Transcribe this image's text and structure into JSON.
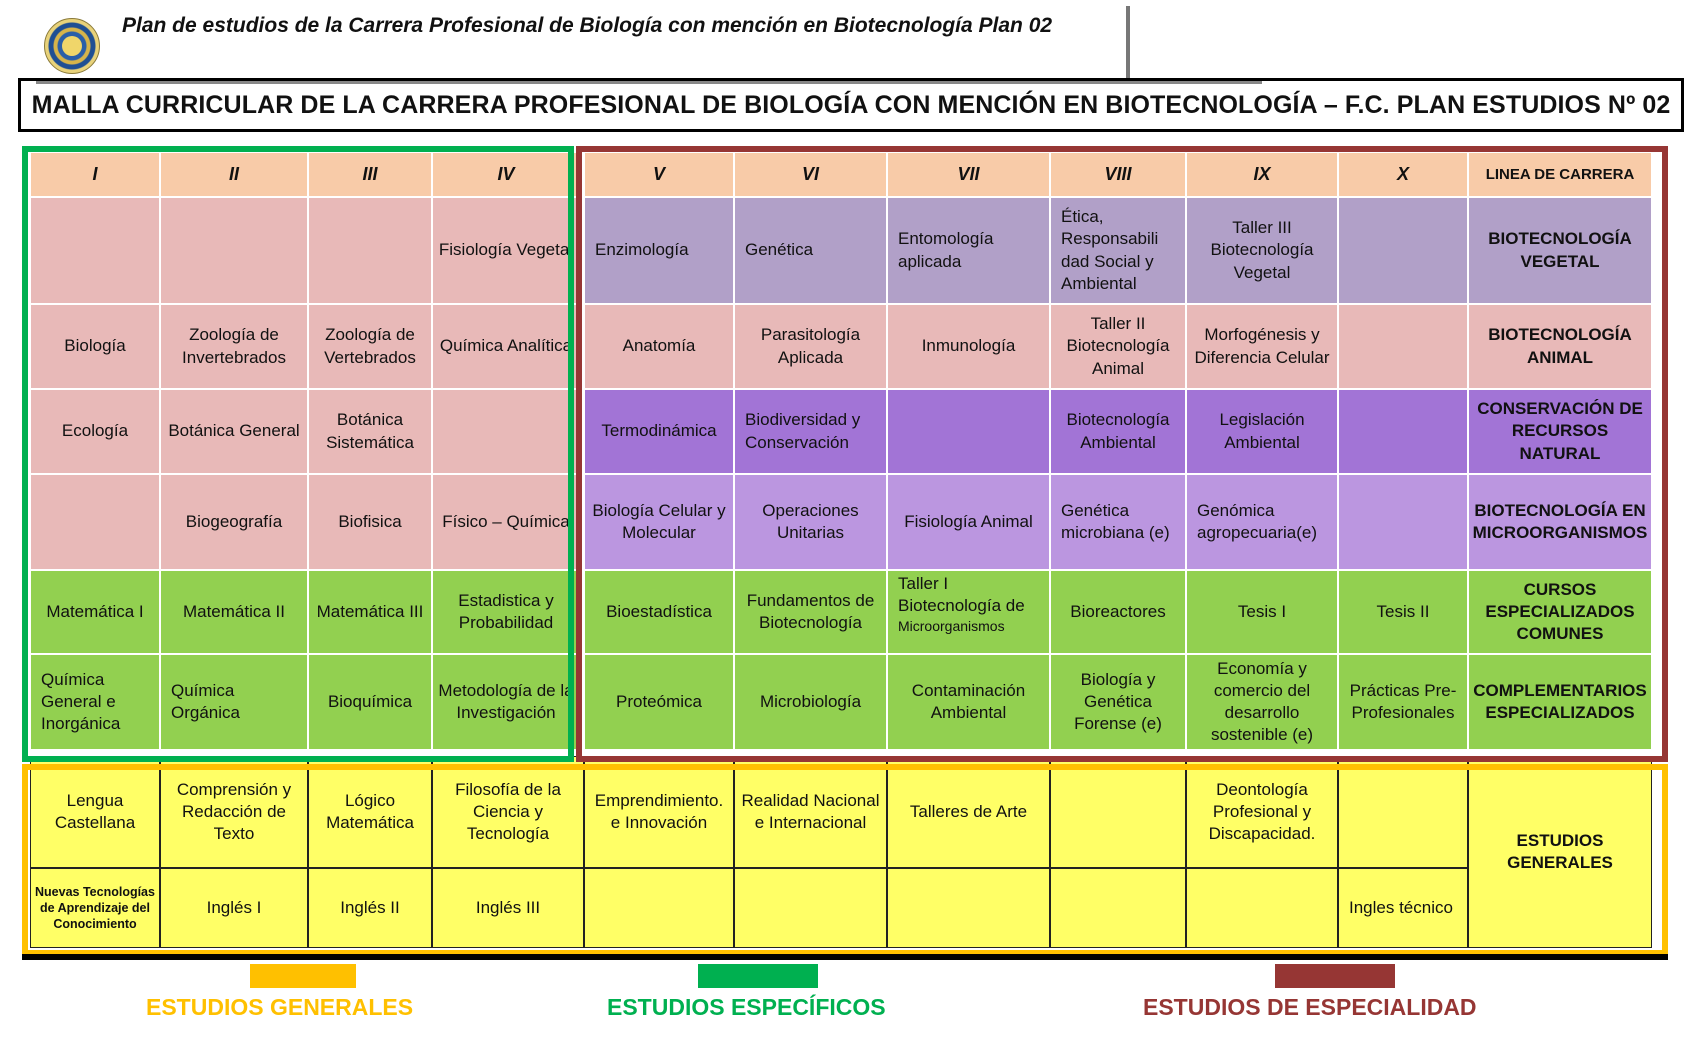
{
  "header": {
    "title": "Plan de estudios de la Carrera Profesional de  Biología con mención en Biotecnología Plan 02",
    "logo_icon": "university-seal-icon"
  },
  "malla_title": "MALLA CURRICULAR DE LA CARRERA PROFESIONAL DE BIOLOGÍA CON MENCIÓN EN BIOTECNOLOGÍA – F.C. PLAN ESTUDIOS Nº 02",
  "semesters": [
    "I",
    "II",
    "III",
    "IV",
    "V",
    "VI",
    "VII",
    "VIII",
    "IX",
    "X"
  ],
  "line_header": "LINEA DE CARRERA",
  "rows": [
    {
      "line": "BIOTECNOLOGÍA VEGETAL",
      "courses": [
        "",
        "",
        "",
        "Fisiología Vegetal",
        "Enzimología",
        "Genética",
        "Entomología aplicada",
        "Ética, Responsabili dad Social y Ambiental",
        "Taller III Biotecnología Vegetal",
        ""
      ]
    },
    {
      "line": "BIOTECNOLOGÍA ANIMAL",
      "courses": [
        "Biología",
        "Zoología de Invertebrados",
        "Zoología de Vertebrados",
        "Química Analítica",
        "Anatomía",
        "Parasitología Aplicada",
        "Inmunología",
        "Taller II Biotecnología Animal",
        "Morfogénesis y Diferencia Celular",
        ""
      ]
    },
    {
      "line": "CONSERVACIÓN DE RECURSOS NATURAL",
      "courses": [
        "Ecología",
        "Botánica General",
        "Botánica Sistemática",
        "",
        "Termodinámica",
        "Biodiversidad y Conservación",
        "",
        "Biotecnología Ambiental",
        "Legislación Ambiental",
        ""
      ]
    },
    {
      "line": "BIOTECNOLOGÍA EN MICROORGANISMOS",
      "courses": [
        "",
        "Biogeografía",
        "Biofisica",
        "Físico – Química",
        "Biología Celular y Molecular",
        "Operaciones Unitarias",
        "Fisiología Animal",
        "Genética microbiana (e)",
        "Genómica agropecuaria(e)",
        ""
      ]
    },
    {
      "line": "CURSOS ESPECIALIZADOS COMUNES",
      "courses": [
        "Matemática I",
        "Matemática II",
        "Matemática III",
        "Estadistica y Probabilidad",
        "Bioestadística",
        "Fundamentos de Biotecnología",
        "Taller I Biotecnología de",
        "Bioreactores",
        "Tesis I",
        "Tesis II"
      ],
      "extra_small": "Microorganismos"
    },
    {
      "line": "COMPLEMENTARIOS ESPECIALIZADOS",
      "courses": [
        "Química General e Inorgánica",
        "Química Orgánica",
        "Bioquímica",
        "Metodología de la Investigación",
        "Proteómica",
        "Microbiología",
        "Contaminación Ambiental",
        "Biología y Genética Forense (e)",
        "Economía y comercio del desarrollo sostenible (e)",
        "Prácticas Pre-Profesionales"
      ]
    }
  ],
  "general_studies": {
    "line": "ESTUDIOS GENERALES",
    "row1": [
      "Lengua Castellana",
      "Comprensión  y Redacción de Texto",
      "Lógico Matemática",
      "Filosofía de la Ciencia y Tecnología",
      "Emprendimiento. e Innovación",
      "Realidad Nacional e Internacional",
      "Talleres de Arte",
      "",
      "Deontología Profesional y Discapacidad.",
      ""
    ],
    "row2": [
      "Nuevas Tecnologías de Aprendizaje del Conocimiento",
      "Inglés I",
      "Inglés II",
      "Inglés III",
      "",
      "",
      "",
      "",
      "",
      "Ingles técnico"
    ]
  },
  "legend": {
    "generales": {
      "label": "ESTUDIOS GENERALES",
      "color": "#ffc000"
    },
    "especificos": {
      "label": "ESTUDIOS ESPECÍFICOS",
      "color": "#00b050"
    },
    "especialidad": {
      "label": "ESTUDIOS DE ESPECIALIDAD",
      "color": "#963634"
    }
  }
}
